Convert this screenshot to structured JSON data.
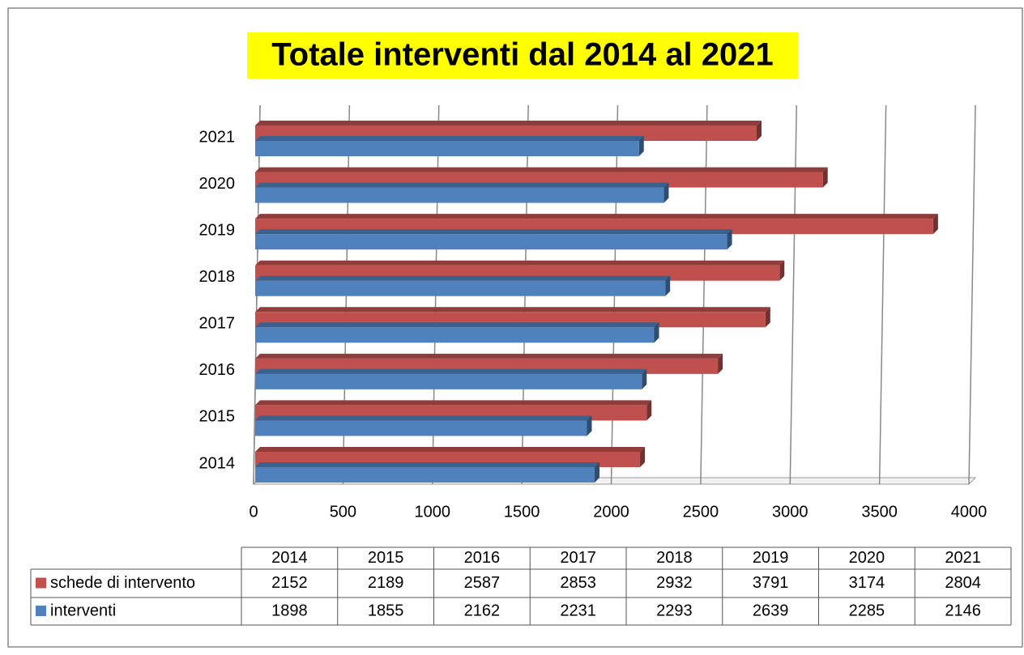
{
  "chart_data": {
    "type": "bar",
    "orientation": "horizontal",
    "title": "Totale interventi dal 2014 al 2021",
    "categories": [
      "2014",
      "2015",
      "2016",
      "2017",
      "2018",
      "2019",
      "2020",
      "2021"
    ],
    "series": [
      {
        "name": "schede di intervento",
        "color": "#c0504d",
        "values": [
          2152,
          2189,
          2587,
          2853,
          2932,
          3791,
          3174,
          2804
        ]
      },
      {
        "name": "interventi",
        "color": "#4f81bd",
        "values": [
          1898,
          1855,
          2162,
          2231,
          2293,
          2639,
          2285,
          2146
        ]
      }
    ],
    "xlim": [
      0,
      4000
    ],
    "xticks": [
      0,
      500,
      1000,
      1500,
      2000,
      2500,
      3000,
      3500,
      4000
    ],
    "grid": true
  }
}
